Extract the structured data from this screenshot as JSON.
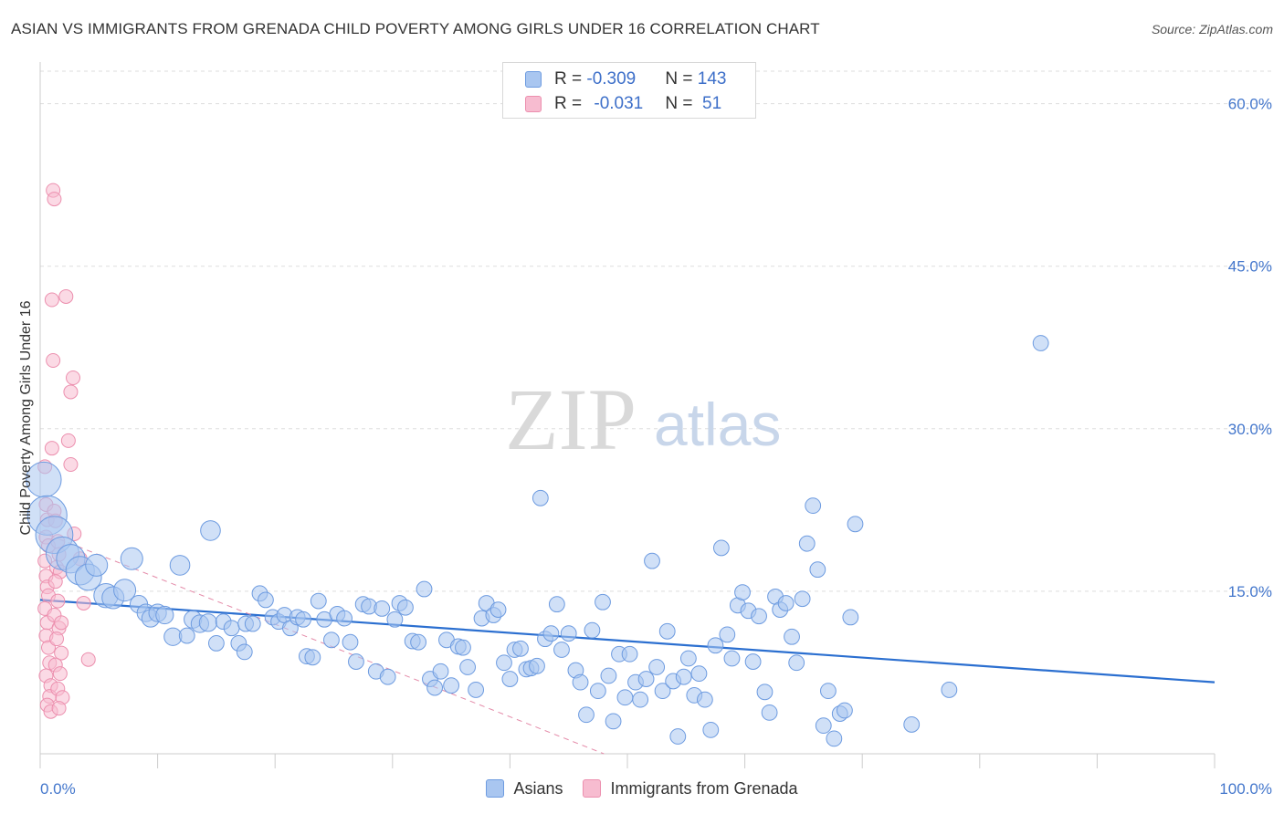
{
  "header": {
    "title": "ASIAN VS IMMIGRANTS FROM GRENADA CHILD POVERTY AMONG GIRLS UNDER 16 CORRELATION CHART",
    "source": "Source: ZipAtlas.com"
  },
  "watermark": {
    "zip": "ZIP",
    "atlas": "atlas"
  },
  "legend": {
    "rows": [
      {
        "r_label": "R = ",
        "r_value": "-0.309",
        "n_label": "N = ",
        "n_value": "143",
        "color": "#a9c6f0",
        "border": "#6d9be0"
      },
      {
        "r_label": "R = ",
        "r_value": "-0.031",
        "n_label": "N = ",
        "n_value": " 51",
        "color": "#f7bcd0",
        "border": "#ec8fae"
      }
    ],
    "series": [
      "Asians",
      "Immigrants from Grenada"
    ]
  },
  "chart_data": {
    "type": "scatter",
    "title": "ASIAN VS IMMIGRANTS FROM GRENADA CHILD POVERTY AMONG GIRLS UNDER 16 CORRELATION CHART",
    "xlabel": "",
    "ylabel": "Child Poverty Among Girls Under 16",
    "xlim": [
      0,
      100
    ],
    "ylim": [
      0,
      63
    ],
    "x_tick_labels": [
      "0.0%",
      "100.0%"
    ],
    "y_ticks": [
      15,
      30,
      45,
      60
    ],
    "y_tick_labels": [
      "15.0%",
      "30.0%",
      "45.0%",
      "60.0%"
    ],
    "grid": "horizontal dashed",
    "legend_position": "top-center",
    "series": [
      {
        "name": "Asians",
        "color": "#6d9be0",
        "fill": "#a9c6f0",
        "trendline": {
          "x": [
            0,
            100
          ],
          "y": [
            14.2,
            6.6
          ]
        },
        "points": [
          [
            0.3,
            25.3,
            1.6
          ],
          [
            0.6,
            22.0,
            1.8
          ],
          [
            1.2,
            20.2,
            1.7
          ],
          [
            1.9,
            18.5,
            1.5
          ],
          [
            2.6,
            18.0,
            1.3
          ],
          [
            3.4,
            16.9,
            1.3
          ],
          [
            4.1,
            16.3,
            1.2
          ],
          [
            4.8,
            17.4,
            1.0
          ],
          [
            5.6,
            14.6,
            1.1
          ],
          [
            6.2,
            14.4,
            1.0
          ],
          [
            7.2,
            15.1,
            1.0
          ],
          [
            7.8,
            18.0,
            1.0
          ],
          [
            8.4,
            13.8,
            0.8
          ],
          [
            9.0,
            13.0,
            0.8
          ],
          [
            9.4,
            12.5,
            0.8
          ],
          [
            10.0,
            13.0,
            0.8
          ],
          [
            10.6,
            12.8,
            0.8
          ],
          [
            11.3,
            10.8,
            0.8
          ],
          [
            11.9,
            17.4,
            0.9
          ],
          [
            12.5,
            10.9,
            0.7
          ],
          [
            13.0,
            12.4,
            0.8
          ],
          [
            13.6,
            12.0,
            0.8
          ],
          [
            14.3,
            12.1,
            0.8
          ],
          [
            14.5,
            20.6,
            0.9
          ],
          [
            15.0,
            10.2,
            0.7
          ],
          [
            15.6,
            12.2,
            0.7
          ],
          [
            16.3,
            11.6,
            0.7
          ],
          [
            16.9,
            10.2,
            0.7
          ],
          [
            17.4,
            9.4,
            0.7
          ],
          [
            17.5,
            12.0,
            0.7
          ],
          [
            18.1,
            12.0,
            0.7
          ],
          [
            18.7,
            14.8,
            0.7
          ],
          [
            19.2,
            14.2,
            0.7
          ],
          [
            19.8,
            12.6,
            0.7
          ],
          [
            20.3,
            12.2,
            0.7
          ],
          [
            20.8,
            12.8,
            0.7
          ],
          [
            21.3,
            11.6,
            0.7
          ],
          [
            21.9,
            12.6,
            0.7
          ],
          [
            22.4,
            12.4,
            0.7
          ],
          [
            22.7,
            9.0,
            0.7
          ],
          [
            23.2,
            8.9,
            0.7
          ],
          [
            23.7,
            14.1,
            0.7
          ],
          [
            24.2,
            12.4,
            0.7
          ],
          [
            24.8,
            10.5,
            0.7
          ],
          [
            25.3,
            12.9,
            0.7
          ],
          [
            25.9,
            12.5,
            0.7
          ],
          [
            26.4,
            10.3,
            0.7
          ],
          [
            26.9,
            8.5,
            0.7
          ],
          [
            27.5,
            13.8,
            0.7
          ],
          [
            28.0,
            13.6,
            0.7
          ],
          [
            28.6,
            7.6,
            0.7
          ],
          [
            29.1,
            13.4,
            0.7
          ],
          [
            29.6,
            7.1,
            0.7
          ],
          [
            30.2,
            12.4,
            0.7
          ],
          [
            30.6,
            13.9,
            0.7
          ],
          [
            31.1,
            13.5,
            0.7
          ],
          [
            31.7,
            10.4,
            0.7
          ],
          [
            32.2,
            10.3,
            0.7
          ],
          [
            32.7,
            15.2,
            0.7
          ],
          [
            33.2,
            6.9,
            0.7
          ],
          [
            33.6,
            6.1,
            0.7
          ],
          [
            34.1,
            7.6,
            0.7
          ],
          [
            34.6,
            10.5,
            0.7
          ],
          [
            35.0,
            6.3,
            0.7
          ],
          [
            35.6,
            9.9,
            0.7
          ],
          [
            36.0,
            9.8,
            0.7
          ],
          [
            36.4,
            8.0,
            0.7
          ],
          [
            37.1,
            5.9,
            0.7
          ],
          [
            37.6,
            12.5,
            0.7
          ],
          [
            38.0,
            13.9,
            0.7
          ],
          [
            38.6,
            12.8,
            0.7
          ],
          [
            39.0,
            13.3,
            0.7
          ],
          [
            39.5,
            8.4,
            0.7
          ],
          [
            40.0,
            6.9,
            0.7
          ],
          [
            40.4,
            9.6,
            0.7
          ],
          [
            40.9,
            9.7,
            0.7
          ],
          [
            41.4,
            7.8,
            0.7
          ],
          [
            41.8,
            7.9,
            0.7
          ],
          [
            42.3,
            8.1,
            0.7
          ],
          [
            42.6,
            23.6,
            0.7
          ],
          [
            43.0,
            10.6,
            0.7
          ],
          [
            43.5,
            11.1,
            0.7
          ],
          [
            44.0,
            13.8,
            0.7
          ],
          [
            44.4,
            9.6,
            0.7
          ],
          [
            45.0,
            11.1,
            0.7
          ],
          [
            45.6,
            7.7,
            0.7
          ],
          [
            46.0,
            6.6,
            0.7
          ],
          [
            46.5,
            3.6,
            0.7
          ],
          [
            47.0,
            11.4,
            0.7
          ],
          [
            47.5,
            5.8,
            0.7
          ],
          [
            47.9,
            14.0,
            0.7
          ],
          [
            48.4,
            7.2,
            0.7
          ],
          [
            48.8,
            3.0,
            0.7
          ],
          [
            49.3,
            9.2,
            0.7
          ],
          [
            49.8,
            5.2,
            0.7
          ],
          [
            50.2,
            9.2,
            0.7
          ],
          [
            50.7,
            6.6,
            0.7
          ],
          [
            51.1,
            5.0,
            0.7
          ],
          [
            51.6,
            6.9,
            0.7
          ],
          [
            52.1,
            17.8,
            0.7
          ],
          [
            52.5,
            8.0,
            0.7
          ],
          [
            53.0,
            5.8,
            0.7
          ],
          [
            53.4,
            11.3,
            0.7
          ],
          [
            53.9,
            6.7,
            0.7
          ],
          [
            54.3,
            1.6,
            0.7
          ],
          [
            54.8,
            7.1,
            0.7
          ],
          [
            55.2,
            8.8,
            0.7
          ],
          [
            55.7,
            5.4,
            0.7
          ],
          [
            56.1,
            7.4,
            0.7
          ],
          [
            56.6,
            5.0,
            0.7
          ],
          [
            57.1,
            2.2,
            0.7
          ],
          [
            57.5,
            10.0,
            0.7
          ],
          [
            58.0,
            19.0,
            0.7
          ],
          [
            58.5,
            11.0,
            0.7
          ],
          [
            58.9,
            8.8,
            0.7
          ],
          [
            59.4,
            13.7,
            0.7
          ],
          [
            59.8,
            14.9,
            0.7
          ],
          [
            60.3,
            13.2,
            0.7
          ],
          [
            60.7,
            8.5,
            0.7
          ],
          [
            61.2,
            12.7,
            0.7
          ],
          [
            61.7,
            5.7,
            0.7
          ],
          [
            62.1,
            3.8,
            0.7
          ],
          [
            62.6,
            14.5,
            0.7
          ],
          [
            63.0,
            13.3,
            0.7
          ],
          [
            63.5,
            13.9,
            0.7
          ],
          [
            64.0,
            10.8,
            0.7
          ],
          [
            64.4,
            8.4,
            0.7
          ],
          [
            64.9,
            14.3,
            0.7
          ],
          [
            65.3,
            19.4,
            0.7
          ],
          [
            65.8,
            22.9,
            0.7
          ],
          [
            66.2,
            17.0,
            0.7
          ],
          [
            66.7,
            2.6,
            0.7
          ],
          [
            67.1,
            5.8,
            0.7
          ],
          [
            67.6,
            1.4,
            0.7
          ],
          [
            68.1,
            3.7,
            0.7
          ],
          [
            68.5,
            4.0,
            0.7
          ],
          [
            69.0,
            12.6,
            0.7
          ],
          [
            69.4,
            21.2,
            0.7
          ],
          [
            74.2,
            2.7,
            0.7
          ],
          [
            77.4,
            5.9,
            0.7
          ],
          [
            85.2,
            37.9,
            0.7
          ]
        ]
      },
      {
        "name": "Immigrants from Grenada",
        "color": "#ec8fae",
        "fill": "#f7bcd0",
        "trendline": {
          "x": [
            0,
            48
          ],
          "y": [
            20.5,
            0
          ]
        },
        "points": [
          [
            0.4,
            26.5
          ],
          [
            0.5,
            23.0
          ],
          [
            0.6,
            21.6
          ],
          [
            0.5,
            20.0
          ],
          [
            0.7,
            19.2
          ],
          [
            0.4,
            17.8
          ],
          [
            0.5,
            16.4
          ],
          [
            0.6,
            15.4
          ],
          [
            0.7,
            14.6
          ],
          [
            0.4,
            13.4
          ],
          [
            0.6,
            12.1
          ],
          [
            0.5,
            10.9
          ],
          [
            0.7,
            9.8
          ],
          [
            0.8,
            8.4
          ],
          [
            0.5,
            7.2
          ],
          [
            0.9,
            6.3
          ],
          [
            0.8,
            5.3
          ],
          [
            0.6,
            4.5
          ],
          [
            0.9,
            3.9
          ],
          [
            1.0,
            41.9
          ],
          [
            1.1,
            36.3
          ],
          [
            1.0,
            28.2
          ],
          [
            1.2,
            22.4
          ],
          [
            1.3,
            21.5
          ],
          [
            1.5,
            19.6
          ],
          [
            1.6,
            18.4
          ],
          [
            1.4,
            17.2
          ],
          [
            1.7,
            16.8
          ],
          [
            1.3,
            15.9
          ],
          [
            1.5,
            14.1
          ],
          [
            1.2,
            12.8
          ],
          [
            1.6,
            11.6
          ],
          [
            1.4,
            10.6
          ],
          [
            1.8,
            9.3
          ],
          [
            1.3,
            8.2
          ],
          [
            1.7,
            7.4
          ],
          [
            1.5,
            6.0
          ],
          [
            1.9,
            5.2
          ],
          [
            1.6,
            4.2
          ],
          [
            1.1,
            52.0
          ],
          [
            1.2,
            51.2
          ],
          [
            2.2,
            42.2
          ],
          [
            2.6,
            33.4
          ],
          [
            2.8,
            34.7
          ],
          [
            2.4,
            28.9
          ],
          [
            2.6,
            26.7
          ],
          [
            2.9,
            20.3
          ],
          [
            3.4,
            18.0
          ],
          [
            3.7,
            13.9
          ],
          [
            4.1,
            8.7
          ],
          [
            1.8,
            12.1
          ]
        ]
      }
    ]
  }
}
